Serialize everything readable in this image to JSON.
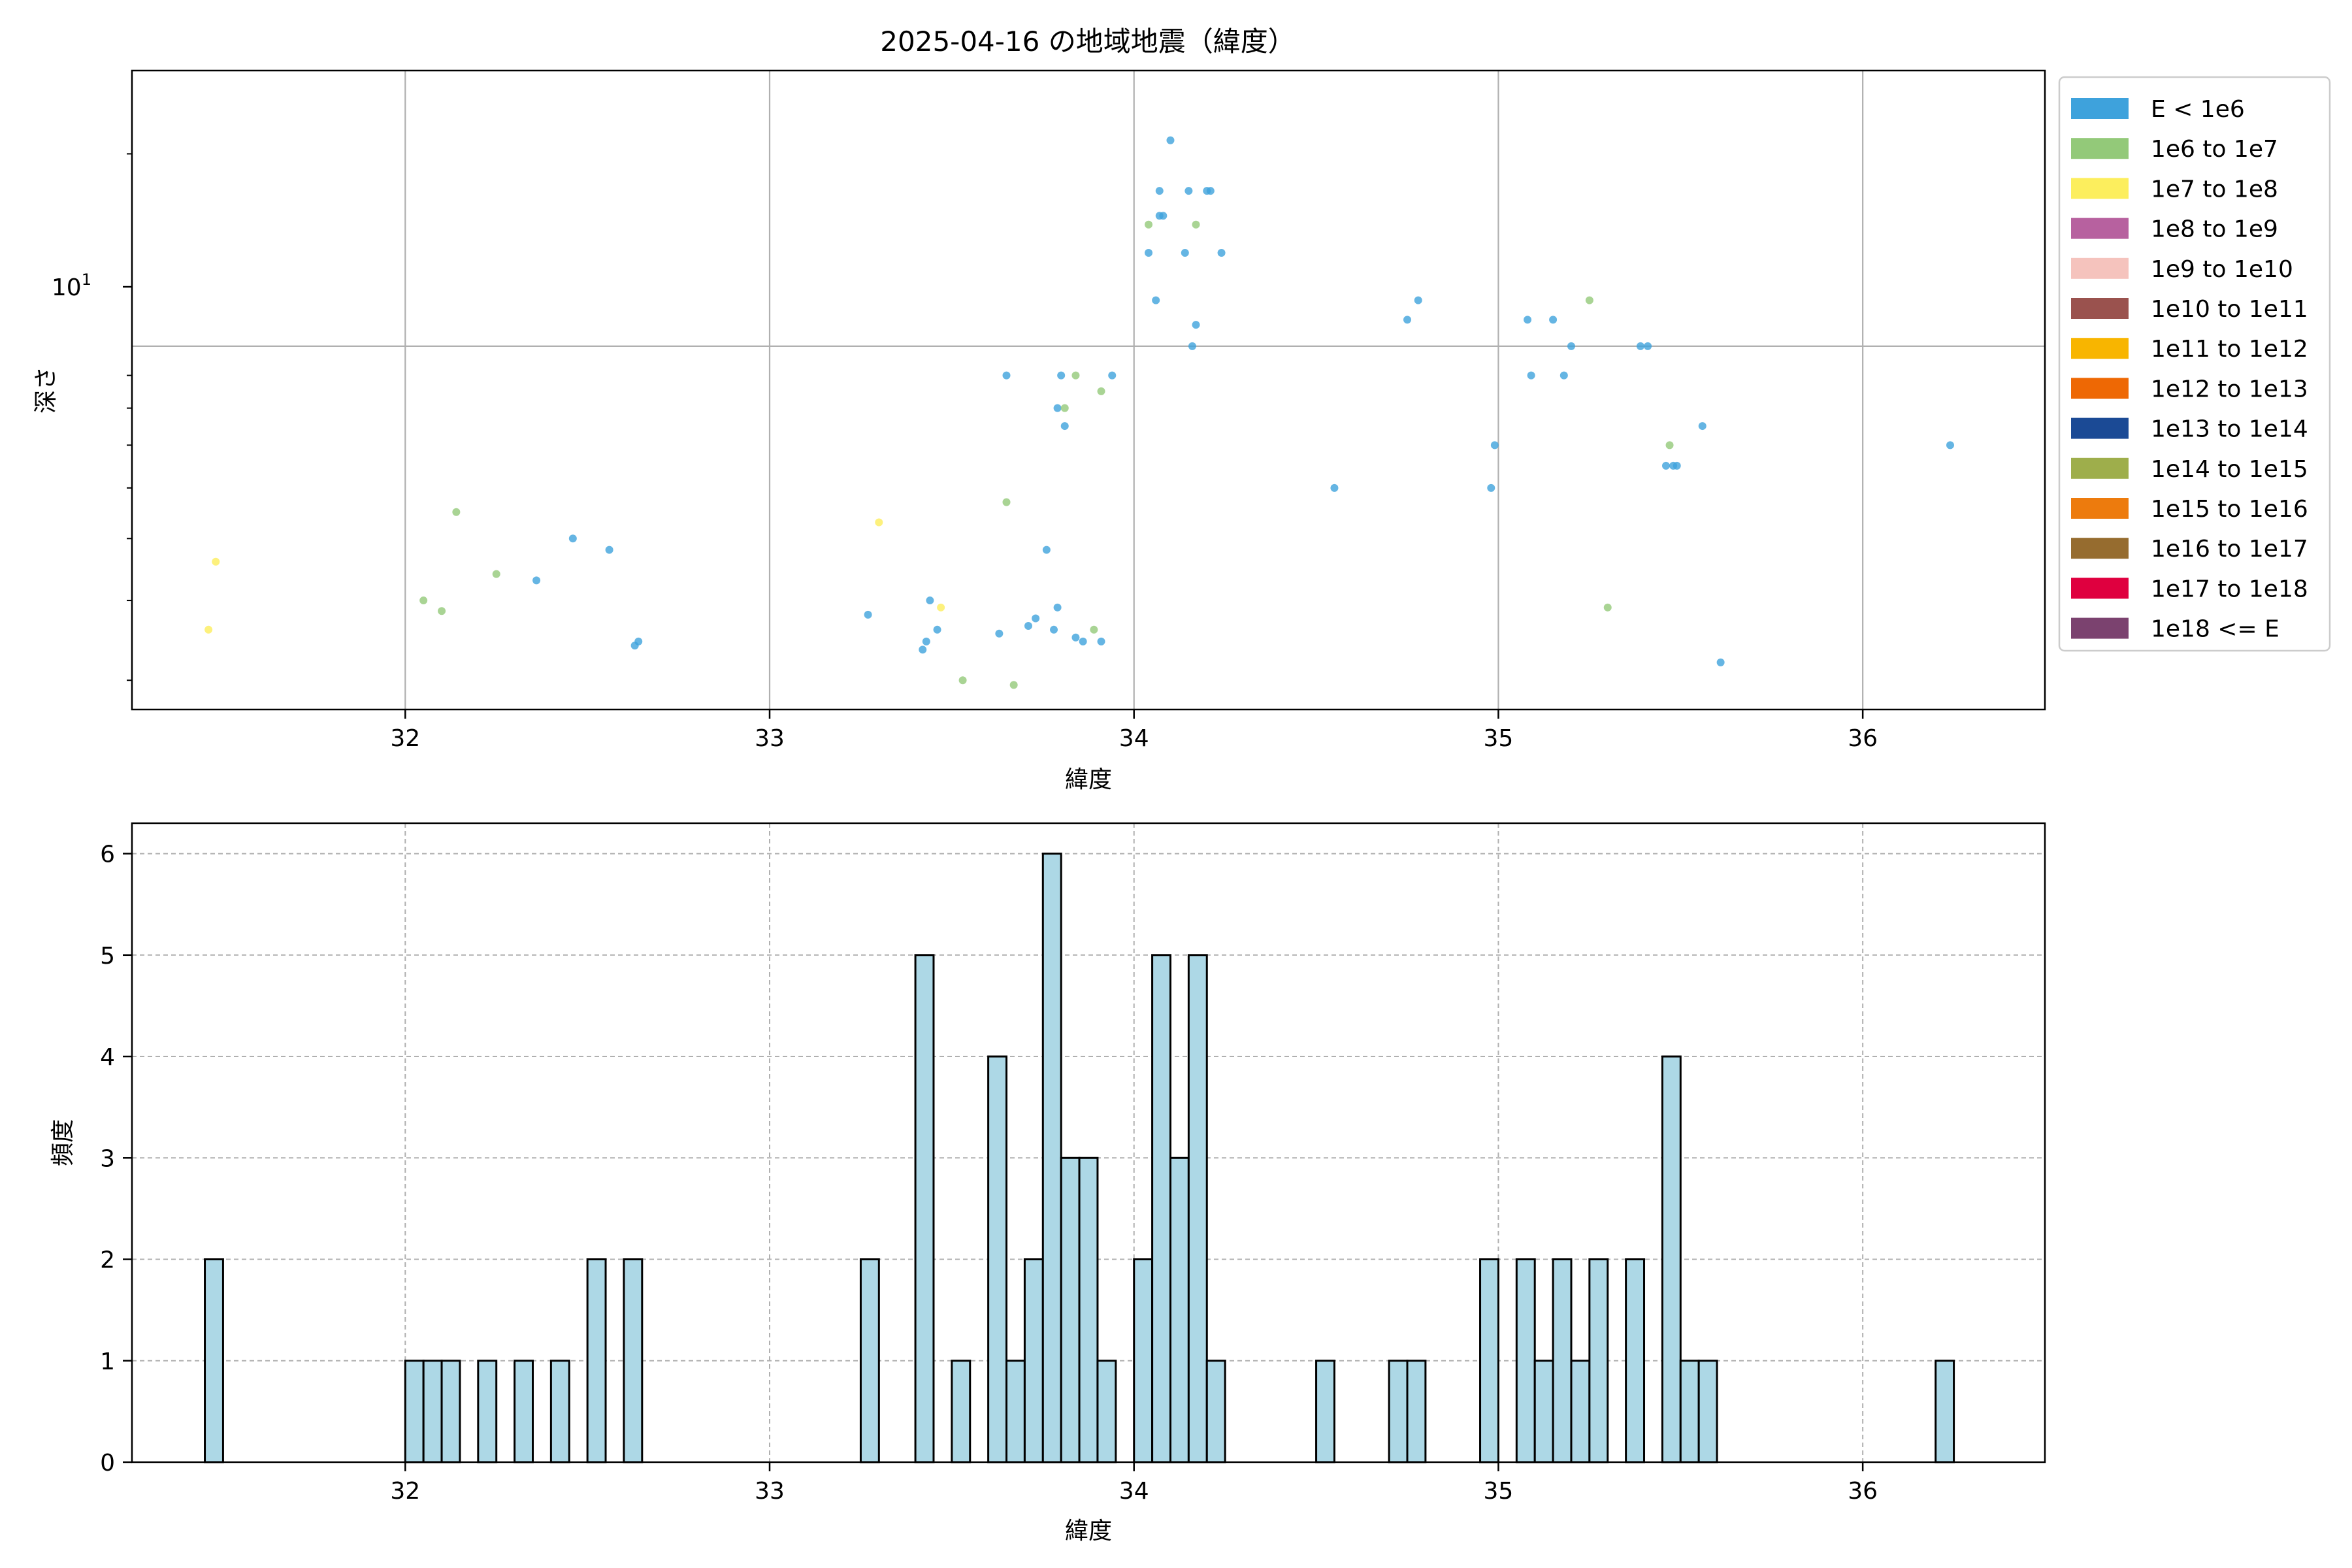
{
  "title": "2025-04-16 の地域地震（緯度）",
  "scatter": {
    "xlabel": "緯度",
    "ylabel": "深さ",
    "y_major_label": "10",
    "y_major_label_exp": "1",
    "x_ticks": [
      "32",
      "33",
      "34",
      "35",
      "36"
    ],
    "legend": [
      {
        "label": "E < 1e6",
        "color": "#3ea2dc"
      },
      {
        "label": "1e6 to 1e7",
        "color": "#93c979"
      },
      {
        "label": "1e7 to 1e8",
        "color": "#fcee5d"
      },
      {
        "label": "1e8 to 1e9",
        "color": "#b7619f"
      },
      {
        "label": "1e9 to 1e10",
        "color": "#f5c3bd"
      },
      {
        "label": "1e10 to 1e11",
        "color": "#9a524e"
      },
      {
        "label": "1e11 to 1e12",
        "color": "#f8b500"
      },
      {
        "label": "1e12 to 1e13",
        "color": "#ee6804"
      },
      {
        "label": "1e13 to 1e14",
        "color": "#1b4a95"
      },
      {
        "label": "1e14 to 1e15",
        "color": "#9eae4b"
      },
      {
        "label": "1e15 to 1e16",
        "color": "#ed7b0d"
      },
      {
        "label": "1e16 to 1e17",
        "color": "#966c2f"
      },
      {
        "label": "1e17 to 1e18",
        "color": "#df003f"
      },
      {
        "label": "1e18 <= E",
        "color": "#7b426f"
      }
    ]
  },
  "histogram": {
    "xlabel": "緯度",
    "ylabel": "頻度",
    "x_ticks": [
      "32",
      "33",
      "34",
      "35",
      "36"
    ],
    "y_ticks": [
      "0",
      "1",
      "2",
      "3",
      "4",
      "5",
      "6"
    ]
  },
  "chart_data": [
    {
      "type": "scatter",
      "title": "2025-04-16 の地域地震（緯度）",
      "xlabel": "緯度",
      "ylabel": "深さ",
      "xlim": [
        31.25,
        36.5
      ],
      "ylim": [
        2.7,
        27
      ],
      "yscale": "log",
      "grid": true,
      "legend_position": "outside-right",
      "series": [
        {
          "name": "E < 1e6",
          "color": "#3ea2dc",
          "points": [
            [
              32.36,
              4.3
            ],
            [
              32.46,
              5.0
            ],
            [
              32.56,
              4.8
            ],
            [
              32.63,
              3.4
            ],
            [
              32.64,
              3.45
            ],
            [
              33.27,
              3.8
            ],
            [
              33.42,
              3.35
            ],
            [
              33.43,
              3.45
            ],
            [
              33.44,
              4.0
            ],
            [
              33.46,
              3.6
            ],
            [
              33.63,
              3.55
            ],
            [
              33.65,
              9.0
            ],
            [
              33.71,
              3.65
            ],
            [
              33.73,
              3.75
            ],
            [
              33.76,
              4.8
            ],
            [
              33.78,
              3.6
            ],
            [
              33.79,
              3.9
            ],
            [
              33.79,
              8.0
            ],
            [
              33.8,
              9.0
            ],
            [
              33.81,
              7.5
            ],
            [
              33.84,
              3.5
            ],
            [
              33.86,
              3.45
            ],
            [
              33.91,
              3.45
            ],
            [
              33.94,
              9.0
            ],
            [
              34.04,
              14.0
            ],
            [
              34.06,
              11.8
            ],
            [
              34.07,
              17.5
            ],
            [
              34.07,
              16.0
            ],
            [
              34.08,
              16.0
            ],
            [
              34.1,
              21.0
            ],
            [
              34.14,
              14.0
            ],
            [
              34.15,
              17.5
            ],
            [
              34.16,
              10.0
            ],
            [
              34.17,
              10.8
            ],
            [
              34.2,
              17.5
            ],
            [
              34.21,
              17.5
            ],
            [
              34.24,
              14.0
            ],
            [
              34.55,
              6.0
            ],
            [
              34.75,
              11.0
            ],
            [
              34.78,
              11.8
            ],
            [
              34.98,
              6.0
            ],
            [
              34.99,
              7.0
            ],
            [
              35.08,
              11.0
            ],
            [
              35.09,
              9.0
            ],
            [
              35.15,
              11.0
            ],
            [
              35.18,
              9.0
            ],
            [
              35.2,
              10.0
            ],
            [
              35.39,
              10.0
            ],
            [
              35.41,
              10.0
            ],
            [
              35.46,
              6.5
            ],
            [
              35.48,
              6.5
            ],
            [
              35.49,
              6.5
            ],
            [
              35.56,
              7.5
            ],
            [
              35.61,
              3.2
            ],
            [
              36.24,
              7.0
            ]
          ]
        },
        {
          "name": "1e6 to 1e7",
          "color": "#93c979",
          "points": [
            [
              32.05,
              4.0
            ],
            [
              32.1,
              3.85
            ],
            [
              32.14,
              5.5
            ],
            [
              32.25,
              4.4
            ],
            [
              33.53,
              3.0
            ],
            [
              33.65,
              5.7
            ],
            [
              33.67,
              2.95
            ],
            [
              33.81,
              8.0
            ],
            [
              33.84,
              9.0
            ],
            [
              33.89,
              3.6
            ],
            [
              33.91,
              8.5
            ],
            [
              34.04,
              15.5
            ],
            [
              34.17,
              15.5
            ],
            [
              35.25,
              11.8
            ],
            [
              35.3,
              3.9
            ],
            [
              35.47,
              7.0
            ]
          ]
        },
        {
          "name": "1e7 to 1e8",
          "color": "#fcee5d",
          "points": [
            [
              31.46,
              3.6
            ],
            [
              31.48,
              4.6
            ],
            [
              33.3,
              5.3
            ],
            [
              33.47,
              3.9
            ]
          ]
        }
      ]
    },
    {
      "type": "bar",
      "subtype": "histogram",
      "xlabel": "緯度",
      "ylabel": "頻度",
      "xlim": [
        31.25,
        36.5
      ],
      "ylim": [
        0,
        6.3
      ],
      "grid": true,
      "bins": [
        {
          "start": 31.45,
          "end": 31.5,
          "count": 2
        },
        {
          "start": 32.0,
          "end": 32.05,
          "count": 1
        },
        {
          "start": 32.05,
          "end": 32.1,
          "count": 1
        },
        {
          "start": 32.1,
          "end": 32.15,
          "count": 1
        },
        {
          "start": 32.2,
          "end": 32.25,
          "count": 1
        },
        {
          "start": 32.3,
          "end": 32.35,
          "count": 1
        },
        {
          "start": 32.4,
          "end": 32.45,
          "count": 1
        },
        {
          "start": 32.5,
          "end": 32.55,
          "count": 2
        },
        {
          "start": 32.6,
          "end": 32.65,
          "count": 2
        },
        {
          "start": 33.25,
          "end": 33.3,
          "count": 2
        },
        {
          "start": 33.4,
          "end": 33.45,
          "count": 5
        },
        {
          "start": 33.5,
          "end": 33.55,
          "count": 1
        },
        {
          "start": 33.6,
          "end": 33.65,
          "count": 4
        },
        {
          "start": 33.65,
          "end": 33.7,
          "count": 1
        },
        {
          "start": 33.7,
          "end": 33.75,
          "count": 2
        },
        {
          "start": 33.75,
          "end": 33.8,
          "count": 6
        },
        {
          "start": 33.8,
          "end": 33.85,
          "count": 3
        },
        {
          "start": 33.85,
          "end": 33.9,
          "count": 3
        },
        {
          "start": 33.9,
          "end": 33.95,
          "count": 1
        },
        {
          "start": 34.0,
          "end": 34.05,
          "count": 2
        },
        {
          "start": 34.05,
          "end": 34.1,
          "count": 5
        },
        {
          "start": 34.1,
          "end": 34.15,
          "count": 3
        },
        {
          "start": 34.15,
          "end": 34.2,
          "count": 5
        },
        {
          "start": 34.2,
          "end": 34.25,
          "count": 1
        },
        {
          "start": 34.5,
          "end": 34.55,
          "count": 1
        },
        {
          "start": 34.7,
          "end": 34.75,
          "count": 1
        },
        {
          "start": 34.75,
          "end": 34.8,
          "count": 1
        },
        {
          "start": 34.95,
          "end": 35.0,
          "count": 2
        },
        {
          "start": 35.05,
          "end": 35.1,
          "count": 2
        },
        {
          "start": 35.1,
          "end": 35.15,
          "count": 1
        },
        {
          "start": 35.15,
          "end": 35.2,
          "count": 2
        },
        {
          "start": 35.2,
          "end": 35.25,
          "count": 1
        },
        {
          "start": 35.25,
          "end": 35.3,
          "count": 2
        },
        {
          "start": 35.35,
          "end": 35.4,
          "count": 2
        },
        {
          "start": 35.45,
          "end": 35.5,
          "count": 4
        },
        {
          "start": 35.5,
          "end": 35.55,
          "count": 1
        },
        {
          "start": 35.55,
          "end": 35.6,
          "count": 1
        },
        {
          "start": 36.2,
          "end": 36.25,
          "count": 1
        }
      ]
    }
  ]
}
